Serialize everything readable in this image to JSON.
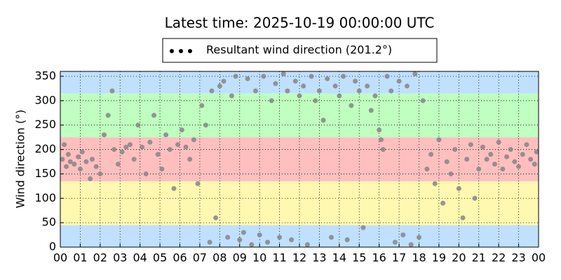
{
  "chart_data": {
    "type": "scatter",
    "title": "Latest time: 2025-10-19 00:00:00 UTC",
    "y_label": "Wind direction (°)",
    "xlim": [
      0,
      24
    ],
    "ylim": [
      0,
      360
    ],
    "xticks": [
      {
        "value": 0,
        "label": "00"
      },
      {
        "value": 1,
        "label": "01"
      },
      {
        "value": 2,
        "label": "02"
      },
      {
        "value": 3,
        "label": "03"
      },
      {
        "value": 4,
        "label": "04"
      },
      {
        "value": 5,
        "label": "05"
      },
      {
        "value": 6,
        "label": "06"
      },
      {
        "value": 7,
        "label": "07"
      },
      {
        "value": 8,
        "label": "08"
      },
      {
        "value": 9,
        "label": "09"
      },
      {
        "value": 10,
        "label": "10"
      },
      {
        "value": 11,
        "label": "11"
      },
      {
        "value": 12,
        "label": "12"
      },
      {
        "value": 13,
        "label": "13"
      },
      {
        "value": 14,
        "label": "14"
      },
      {
        "value": 15,
        "label": "15"
      },
      {
        "value": 16,
        "label": "16"
      },
      {
        "value": 17,
        "label": "17"
      },
      {
        "value": 18,
        "label": "18"
      },
      {
        "value": 19,
        "label": "19"
      },
      {
        "value": 20,
        "label": "20"
      },
      {
        "value": 21,
        "label": "21"
      },
      {
        "value": 22,
        "label": "22"
      },
      {
        "value": 23,
        "label": "23"
      },
      {
        "value": 24,
        "label": "00"
      }
    ],
    "yticks": [
      0,
      50,
      100,
      150,
      200,
      250,
      300,
      350
    ],
    "grid": true,
    "bands": [
      {
        "range": [
          0,
          45
        ],
        "color": "#bfe0ff"
      },
      {
        "range": [
          45,
          135
        ],
        "color": "#fff8b0"
      },
      {
        "range": [
          135,
          225
        ],
        "color": "#ffbfbf"
      },
      {
        "range": [
          225,
          315
        ],
        "color": "#bfffbf"
      },
      {
        "range": [
          315,
          360
        ],
        "color": "#bfe0ff"
      }
    ],
    "x": [
      0.1,
      0.2,
      0.3,
      0.4,
      0.5,
      0.7,
      0.9,
      1.0,
      1.1,
      1.3,
      1.5,
      1.6,
      1.8,
      2.0,
      2.2,
      2.4,
      2.6,
      2.7,
      2.9,
      3.1,
      3.3,
      3.5,
      3.7,
      3.9,
      4.1,
      4.3,
      4.5,
      4.7,
      4.9,
      5.1,
      5.3,
      5.5,
      5.7,
      5.9,
      6.1,
      6.3,
      6.5,
      6.7,
      6.9,
      7.1,
      7.3,
      7.5,
      7.6,
      7.8,
      8.0,
      8.2,
      8.4,
      8.6,
      8.8,
      9.0,
      9.2,
      9.4,
      9.6,
      9.8,
      10.0,
      10.2,
      10.4,
      10.6,
      10.8,
      11.0,
      11.2,
      11.4,
      11.6,
      11.8,
      12.0,
      12.2,
      12.4,
      12.6,
      12.8,
      13.0,
      13.2,
      13.4,
      13.6,
      13.8,
      14.0,
      14.2,
      14.4,
      14.6,
      14.8,
      15.0,
      15.2,
      15.4,
      15.6,
      15.8,
      16.0,
      16.1,
      16.2,
      16.4,
      16.6,
      16.8,
      17.0,
      17.2,
      17.4,
      17.6,
      17.8,
      18.0,
      18.2,
      18.4,
      18.6,
      18.8,
      19.0,
      19.2,
      19.4,
      19.6,
      19.8,
      20.0,
      20.2,
      20.4,
      20.6,
      20.8,
      21.0,
      21.2,
      21.4,
      21.6,
      21.8,
      22.0,
      22.2,
      22.4,
      22.6,
      22.8,
      23.0,
      23.2,
      23.4,
      23.6,
      23.8,
      23.9
    ],
    "series": [
      {
        "name": "Resultant wind direction (201.2°)",
        "color": "#858585",
        "values": [
          180,
          210,
          165,
          190,
          175,
          170,
          185,
          160,
          195,
          175,
          140,
          180,
          165,
          150,
          230,
          270,
          320,
          200,
          170,
          195,
          205,
          210,
          180,
          250,
          205,
          150,
          215,
          270,
          190,
          160,
          230,
          200,
          120,
          210,
          240,
          205,
          180,
          220,
          130,
          290,
          250,
          10,
          320,
          60,
          330,
          340,
          20,
          310,
          350,
          15,
          30,
          345,
          5,
          320,
          25,
          350,
          10,
          300,
          335,
          20,
          355,
          320,
          15,
          340,
          310,
          330,
          5,
          350,
          300,
          320,
          260,
          345,
          20,
          330,
          310,
          350,
          15,
          290,
          340,
          320,
          40,
          330,
          280,
          310,
          240,
          220,
          200,
          350,
          320,
          10,
          340,
          25,
          330,
          5,
          355,
          20,
          300,
          160,
          190,
          130,
          220,
          90,
          175,
          150,
          200,
          120,
          60,
          180,
          210,
          100,
          160,
          205,
          180,
          190,
          170,
          215,
          160,
          185,
          200,
          175,
          165,
          190,
          210,
          180,
          170,
          195
        ]
      }
    ]
  }
}
